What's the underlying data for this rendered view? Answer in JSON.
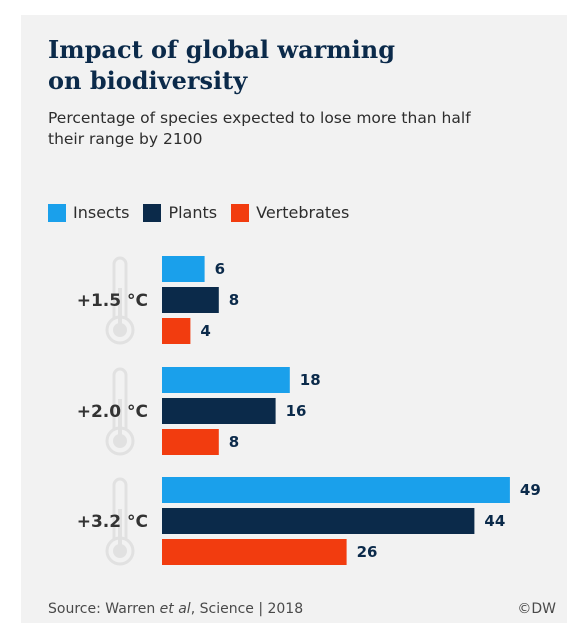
{
  "title_line1": "Impact of global warming",
  "title_line2": "on biodiversity",
  "subtitle_line1": "Percentage of species expected to lose more than half",
  "subtitle_line2": "their range by 2100",
  "source_prefix": "Source: Warren ",
  "source_italic": "et al",
  "source_suffix": ", Science | 2018",
  "credit": "©DW",
  "colors": {
    "insects": "#1aa0eb",
    "plants": "#0b2a4a",
    "vertebrates": "#f23c0f",
    "thermometer": "#e1e1e1",
    "group_label": "#333333"
  },
  "chart_data": {
    "type": "bar",
    "orientation": "horizontal",
    "categories": [
      "+1.5 °C",
      "+2.0 °C",
      "+3.2 °C"
    ],
    "series": [
      {
        "name": "Insects",
        "values": [
          6,
          18,
          49
        ]
      },
      {
        "name": "Plants",
        "values": [
          8,
          16,
          44
        ]
      },
      {
        "name": "Vertebrates",
        "values": [
          4,
          8,
          26
        ]
      }
    ],
    "title": "Impact of global warming on biodiversity",
    "legend": "top-left",
    "grid": false
  }
}
